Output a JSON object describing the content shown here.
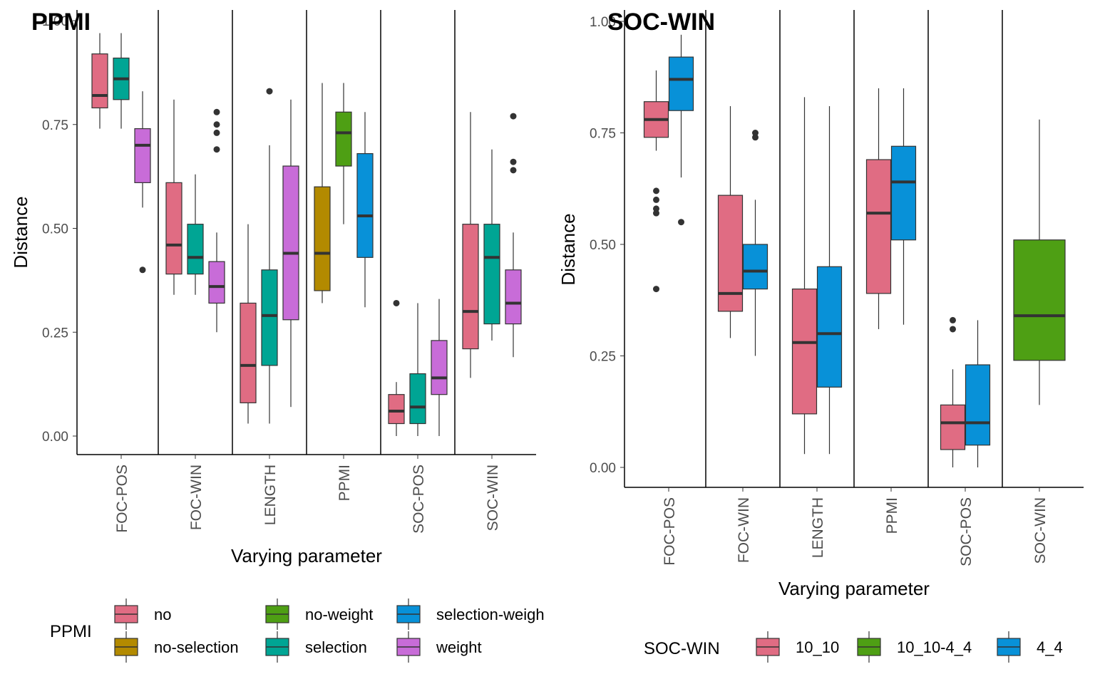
{
  "chart_data": [
    {
      "type": "boxplot",
      "title": "PPMI",
      "xlabel": "Varying parameter",
      "ylabel": "Distance",
      "ylim": [
        -0.045,
        1.0
      ],
      "y_ticks": [
        "0.00",
        "0.25",
        "0.50",
        "0.75",
        "1.00"
      ],
      "y_tick_values": [
        0,
        0.25,
        0.5,
        0.75,
        1.0
      ],
      "categories": [
        "FOC-POS",
        "FOC-WIN",
        "LENGTH",
        "PPMI",
        "SOC-POS",
        "SOC-WIN"
      ],
      "legend_title": "PPMI",
      "legend": [
        {
          "label": "no",
          "color": "#E06C83"
        },
        {
          "label": "no-selection",
          "color": "#B38A00"
        },
        {
          "label": "no-weight",
          "color": "#4E9F14"
        },
        {
          "label": "selection",
          "color": "#00A594"
        },
        {
          "label": "selection-weigh",
          "color": "#0891D8"
        },
        {
          "label": "weight",
          "color": "#C86CD8"
        }
      ],
      "legend_layout": [
        [
          0,
          2,
          4
        ],
        [
          1,
          3,
          5
        ]
      ],
      "boxes": [
        {
          "category": "FOC-POS",
          "series": "no",
          "color": "#E06C83",
          "width": 1,
          "pos": 0,
          "min": 0.74,
          "q1": 0.79,
          "median": 0.82,
          "q3": 0.92,
          "max": 0.97,
          "outliers": []
        },
        {
          "category": "FOC-POS",
          "series": "selection",
          "color": "#00A594",
          "width": 1,
          "pos": 1,
          "min": 0.74,
          "q1": 0.81,
          "median": 0.86,
          "q3": 0.91,
          "max": 0.97,
          "outliers": []
        },
        {
          "category": "FOC-POS",
          "series": "weight",
          "color": "#C86CD8",
          "width": 1,
          "pos": 2,
          "min": 0.55,
          "q1": 0.61,
          "median": 0.7,
          "q3": 0.74,
          "max": 0.83,
          "outliers": [
            0.4
          ]
        },
        {
          "category": "FOC-WIN",
          "series": "no",
          "color": "#E06C83",
          "width": 1,
          "pos": 0,
          "min": 0.34,
          "q1": 0.39,
          "median": 0.46,
          "q3": 0.61,
          "max": 0.81,
          "outliers": []
        },
        {
          "category": "FOC-WIN",
          "series": "selection",
          "color": "#00A594",
          "width": 1,
          "pos": 1,
          "min": 0.34,
          "q1": 0.39,
          "median": 0.43,
          "q3": 0.51,
          "max": 0.63,
          "outliers": []
        },
        {
          "category": "FOC-WIN",
          "series": "weight",
          "color": "#C86CD8",
          "width": 1,
          "pos": 2,
          "min": 0.25,
          "q1": 0.32,
          "median": 0.36,
          "q3": 0.42,
          "max": 0.49,
          "outliers": [
            0.69,
            0.73,
            0.75,
            0.78
          ]
        },
        {
          "category": "LENGTH",
          "series": "no",
          "color": "#E06C83",
          "width": 1,
          "pos": 0,
          "min": 0.03,
          "q1": 0.08,
          "median": 0.17,
          "q3": 0.32,
          "max": 0.51,
          "outliers": []
        },
        {
          "category": "LENGTH",
          "series": "selection",
          "color": "#00A594",
          "width": 1,
          "pos": 1,
          "min": 0.03,
          "q1": 0.17,
          "median": 0.29,
          "q3": 0.4,
          "max": 0.7,
          "outliers": [
            0.83
          ]
        },
        {
          "category": "LENGTH",
          "series": "weight",
          "color": "#C86CD8",
          "width": 1,
          "pos": 2,
          "min": 0.07,
          "q1": 0.28,
          "median": 0.44,
          "q3": 0.65,
          "max": 0.81,
          "outliers": []
        },
        {
          "category": "PPMI",
          "series": "no-selection",
          "color": "#B38A00",
          "width": 1,
          "pos": 0,
          "min": 0.32,
          "q1": 0.35,
          "median": 0.44,
          "q3": 0.6,
          "max": 0.85,
          "outliers": []
        },
        {
          "category": "PPMI",
          "series": "no-weight",
          "color": "#4E9F14",
          "width": 1,
          "pos": 1,
          "min": 0.51,
          "q1": 0.65,
          "median": 0.73,
          "q3": 0.78,
          "max": 0.85,
          "outliers": []
        },
        {
          "category": "PPMI",
          "series": "selection-weigh",
          "color": "#0891D8",
          "width": 1,
          "pos": 2,
          "min": 0.31,
          "q1": 0.43,
          "median": 0.53,
          "q3": 0.68,
          "max": 0.78,
          "outliers": []
        },
        {
          "category": "SOC-POS",
          "series": "no",
          "color": "#E06C83",
          "width": 1,
          "pos": 0,
          "min": 0.0,
          "q1": 0.03,
          "median": 0.06,
          "q3": 0.1,
          "max": 0.13,
          "outliers": [
            0.32
          ]
        },
        {
          "category": "SOC-POS",
          "series": "selection",
          "color": "#00A594",
          "width": 1,
          "pos": 1,
          "min": 0.0,
          "q1": 0.03,
          "median": 0.07,
          "q3": 0.15,
          "max": 0.32,
          "outliers": []
        },
        {
          "category": "SOC-POS",
          "series": "weight",
          "color": "#C86CD8",
          "width": 1,
          "pos": 2,
          "min": 0.0,
          "q1": 0.1,
          "median": 0.14,
          "q3": 0.23,
          "max": 0.33,
          "outliers": []
        },
        {
          "category": "SOC-WIN",
          "series": "no",
          "color": "#E06C83",
          "width": 1,
          "pos": 0,
          "min": 0.14,
          "q1": 0.21,
          "median": 0.3,
          "q3": 0.51,
          "max": 0.78,
          "outliers": []
        },
        {
          "category": "SOC-WIN",
          "series": "selection",
          "color": "#00A594",
          "width": 1,
          "pos": 1,
          "min": 0.23,
          "q1": 0.27,
          "median": 0.43,
          "q3": 0.51,
          "max": 0.69,
          "outliers": []
        },
        {
          "category": "SOC-WIN",
          "series": "weight",
          "color": "#C86CD8",
          "width": 1,
          "pos": 2,
          "min": 0.19,
          "q1": 0.27,
          "median": 0.32,
          "q3": 0.4,
          "max": 0.49,
          "outliers": [
            0.64,
            0.66,
            0.77
          ]
        }
      ]
    },
    {
      "type": "boxplot",
      "title": "SOC-WIN",
      "xlabel": "Varying parameter",
      "ylabel": "Distance",
      "ylim": [
        -0.045,
        1.0
      ],
      "y_ticks": [
        "0.00",
        "0.25",
        "0.50",
        "0.75",
        "1.00"
      ],
      "y_tick_values": [
        0,
        0.25,
        0.5,
        0.75,
        1.0
      ],
      "categories": [
        "FOC-POS",
        "FOC-WIN",
        "LENGTH",
        "PPMI",
        "SOC-POS",
        "SOC-WIN"
      ],
      "legend_title": "SOC-WIN",
      "legend": [
        {
          "label": "10_10",
          "color": "#E06C83"
        },
        {
          "label": "10_10-4_4",
          "color": "#4E9F14"
        },
        {
          "label": "4_4",
          "color": "#0891D8"
        }
      ],
      "legend_layout": [
        [
          0,
          1,
          2
        ]
      ],
      "boxes": [
        {
          "category": "FOC-POS",
          "series": "10_10",
          "color": "#E06C83",
          "width": 1,
          "pos": 0,
          "min": 0.71,
          "q1": 0.74,
          "median": 0.78,
          "q3": 0.82,
          "max": 0.89,
          "outliers": [
            0.4,
            0.57,
            0.58,
            0.6,
            0.62
          ]
        },
        {
          "category": "FOC-POS",
          "series": "4_4",
          "color": "#0891D8",
          "width": 1,
          "pos": 1,
          "min": 0.65,
          "q1": 0.8,
          "median": 0.87,
          "q3": 0.92,
          "max": 0.97,
          "outliers": [
            0.55
          ]
        },
        {
          "category": "FOC-WIN",
          "series": "10_10",
          "color": "#E06C83",
          "width": 1,
          "pos": 0,
          "min": 0.29,
          "q1": 0.35,
          "median": 0.39,
          "q3": 0.61,
          "max": 0.81,
          "outliers": []
        },
        {
          "category": "FOC-WIN",
          "series": "4_4",
          "color": "#0891D8",
          "width": 1,
          "pos": 1,
          "min": 0.25,
          "q1": 0.4,
          "median": 0.44,
          "q3": 0.5,
          "max": 0.6,
          "outliers": [
            0.74,
            0.75
          ]
        },
        {
          "category": "LENGTH",
          "series": "10_10",
          "color": "#E06C83",
          "width": 1,
          "pos": 0,
          "min": 0.03,
          "q1": 0.12,
          "median": 0.28,
          "q3": 0.4,
          "max": 0.83,
          "outliers": []
        },
        {
          "category": "LENGTH",
          "series": "4_4",
          "color": "#0891D8",
          "width": 1,
          "pos": 1,
          "min": 0.03,
          "q1": 0.18,
          "median": 0.3,
          "q3": 0.45,
          "max": 0.81,
          "outliers": []
        },
        {
          "category": "PPMI",
          "series": "10_10",
          "color": "#E06C83",
          "width": 1,
          "pos": 0,
          "min": 0.31,
          "q1": 0.39,
          "median": 0.57,
          "q3": 0.69,
          "max": 0.85,
          "outliers": []
        },
        {
          "category": "PPMI",
          "series": "4_4",
          "color": "#0891D8",
          "width": 1,
          "pos": 1,
          "min": 0.32,
          "q1": 0.51,
          "median": 0.64,
          "q3": 0.72,
          "max": 0.85,
          "outliers": []
        },
        {
          "category": "SOC-POS",
          "series": "10_10",
          "color": "#E06C83",
          "width": 1,
          "pos": 0,
          "min": 0.0,
          "q1": 0.04,
          "median": 0.1,
          "q3": 0.14,
          "max": 0.22,
          "outliers": [
            0.31,
            0.33
          ]
        },
        {
          "category": "SOC-POS",
          "series": "4_4",
          "color": "#0891D8",
          "width": 1,
          "pos": 1,
          "min": 0.0,
          "q1": 0.05,
          "median": 0.1,
          "q3": 0.23,
          "max": 0.33,
          "outliers": []
        },
        {
          "category": "SOC-WIN",
          "series": "10_10-4_4",
          "color": "#4E9F14",
          "width": 1,
          "pos": 0,
          "min": 0.14,
          "q1": 0.24,
          "median": 0.34,
          "q3": 0.51,
          "max": 0.78,
          "outliers": []
        }
      ]
    }
  ]
}
